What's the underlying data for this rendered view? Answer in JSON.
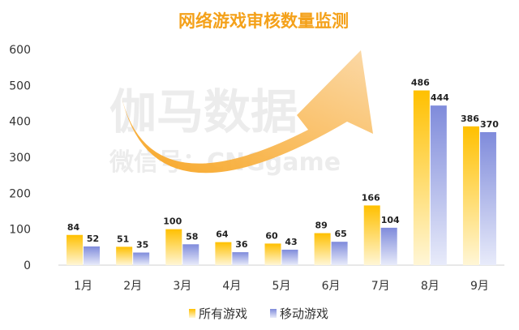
{
  "chart_data": {
    "type": "bar",
    "title": "网络游戏审核数量监测",
    "categories": [
      "1月",
      "2月",
      "3月",
      "4月",
      "5月",
      "6月",
      "7月",
      "8月",
      "9月"
    ],
    "series": [
      {
        "name": "所有游戏",
        "values": [
          84,
          51,
          100,
          64,
          60,
          89,
          166,
          486,
          386
        ],
        "color": "#FFC000"
      },
      {
        "name": "移动游戏",
        "values": [
          52,
          35,
          58,
          36,
          43,
          65,
          104,
          444,
          370
        ],
        "color": "#7F8BDB"
      }
    ],
    "yticks": [
      0,
      100,
      200,
      300,
      400,
      500,
      600
    ],
    "ylim": [
      0,
      600
    ],
    "grid": false,
    "legend": "bottom",
    "data_labels": true,
    "title_color": "#F4A11A"
  },
  "watermark": {
    "line1": "伽马数据",
    "line2": "微信号：CNGgame"
  }
}
